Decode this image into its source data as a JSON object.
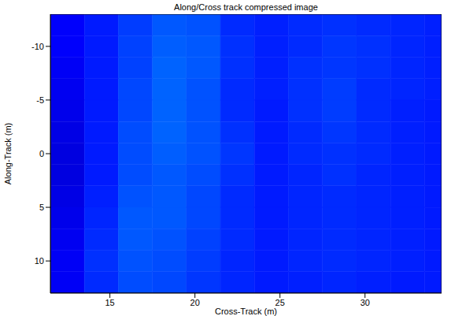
{
  "chart_data": {
    "type": "heatmap",
    "title": "Along/Cross track compressed image",
    "x_label": "Cross-Track (m)",
    "y_label": "Along-Track (m)",
    "xlim": [
      11.5,
      34.5
    ],
    "ylim": [
      -13,
      13
    ],
    "xticks": [
      15,
      20,
      25,
      30
    ],
    "yticks": [
      -10,
      -5,
      0,
      5,
      10
    ],
    "x_edges": [
      11.5,
      13.5,
      15.5,
      17.5,
      19.5,
      21.5,
      23.5,
      25.5,
      27.5,
      29.5,
      31.5,
      33.5,
      34.5
    ],
    "y_edges": [
      -13,
      -11,
      -9,
      -7,
      -5,
      -3,
      -1,
      1,
      3,
      5,
      7,
      9,
      11,
      13
    ],
    "zlim": [
      0,
      1.8
    ],
    "z": [
      [
        0.22,
        0.27,
        0.33,
        0.38,
        0.37,
        0.3,
        0.28,
        0.3,
        0.31,
        0.3,
        0.29,
        0.28
      ],
      [
        0.22,
        0.27,
        0.34,
        0.39,
        0.38,
        0.31,
        0.28,
        0.3,
        0.32,
        0.31,
        0.29,
        0.28
      ],
      [
        0.21,
        0.27,
        0.34,
        0.4,
        0.38,
        0.31,
        0.28,
        0.31,
        0.32,
        0.31,
        0.29,
        0.28
      ],
      [
        0.2,
        0.27,
        0.35,
        0.4,
        0.37,
        0.3,
        0.28,
        0.31,
        0.33,
        0.3,
        0.29,
        0.28
      ],
      [
        0.19,
        0.27,
        0.35,
        0.4,
        0.37,
        0.3,
        0.27,
        0.31,
        0.33,
        0.3,
        0.28,
        0.27
      ],
      [
        0.18,
        0.27,
        0.36,
        0.4,
        0.37,
        0.31,
        0.27,
        0.3,
        0.32,
        0.3,
        0.28,
        0.27
      ],
      [
        0.17,
        0.27,
        0.36,
        0.39,
        0.37,
        0.32,
        0.27,
        0.3,
        0.31,
        0.3,
        0.28,
        0.27
      ],
      [
        0.17,
        0.27,
        0.36,
        0.38,
        0.36,
        0.31,
        0.27,
        0.29,
        0.31,
        0.29,
        0.28,
        0.27
      ],
      [
        0.18,
        0.28,
        0.37,
        0.38,
        0.35,
        0.3,
        0.27,
        0.29,
        0.3,
        0.29,
        0.28,
        0.27
      ],
      [
        0.19,
        0.29,
        0.38,
        0.38,
        0.35,
        0.3,
        0.27,
        0.29,
        0.3,
        0.29,
        0.28,
        0.27
      ],
      [
        0.2,
        0.3,
        0.38,
        0.37,
        0.34,
        0.3,
        0.27,
        0.29,
        0.3,
        0.29,
        0.28,
        0.27
      ],
      [
        0.21,
        0.31,
        0.37,
        0.36,
        0.33,
        0.29,
        0.27,
        0.29,
        0.3,
        0.29,
        0.28,
        0.27
      ],
      [
        0.21,
        0.3,
        0.36,
        0.35,
        0.32,
        0.29,
        0.27,
        0.28,
        0.29,
        0.28,
        0.27,
        0.27
      ]
    ]
  }
}
